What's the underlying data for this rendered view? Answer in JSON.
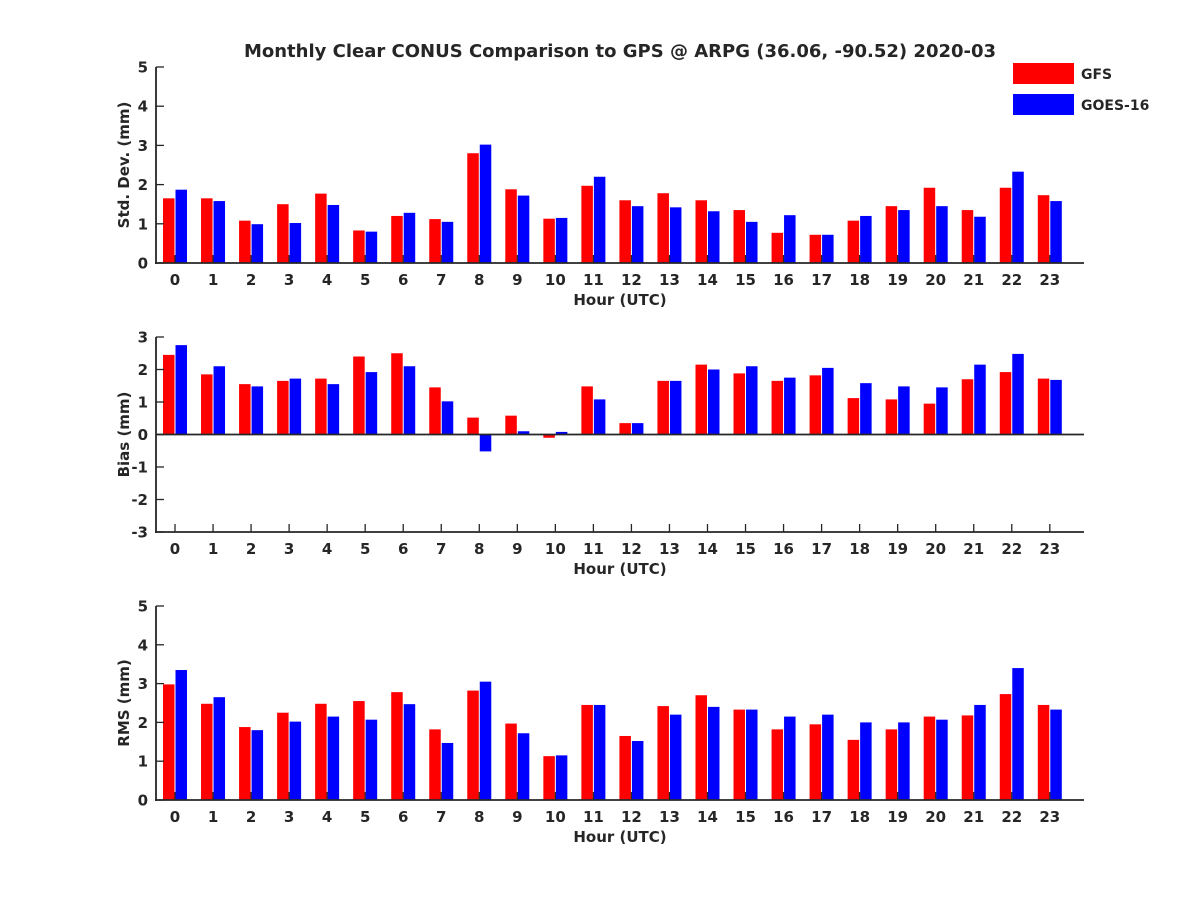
{
  "figure": {
    "title": "Monthly Clear CONUS Comparison to GPS @ ARPG (36.06, -90.52) 2020-03"
  },
  "legend": {
    "placement": "top-right",
    "entries": [
      {
        "label": "GFS",
        "color": "#ff0000"
      },
      {
        "label": "GOES-16",
        "color": "#0000ff"
      }
    ]
  },
  "chart_data": [
    {
      "type": "bar",
      "title": "Monthly Clear CONUS Comparison to GPS @ ARPG (36.06, -90.52) 2020-03",
      "xlabel": "Hour (UTC)",
      "ylabel": "Std. Dev. (mm)",
      "ylim": [
        0,
        5
      ],
      "yticks": [
        0,
        1,
        2,
        3,
        4,
        5
      ],
      "categories": [
        "0",
        "1",
        "2",
        "3",
        "4",
        "5",
        "6",
        "7",
        "8",
        "9",
        "10",
        "11",
        "12",
        "13",
        "14",
        "15",
        "16",
        "17",
        "18",
        "19",
        "20",
        "21",
        "22",
        "23"
      ],
      "grid": false,
      "series": [
        {
          "name": "GFS",
          "color": "#ff0000",
          "values": [
            1.65,
            1.65,
            1.08,
            1.5,
            1.77,
            0.83,
            1.2,
            1.12,
            2.8,
            1.88,
            1.13,
            1.97,
            1.6,
            1.78,
            1.6,
            1.35,
            0.77,
            0.72,
            1.08,
            1.45,
            1.92,
            1.35,
            1.92,
            1.73
          ]
        },
        {
          "name": "GOES-16",
          "color": "#0000ff",
          "values": [
            1.87,
            1.58,
            0.99,
            1.02,
            1.48,
            0.8,
            1.28,
            1.05,
            3.02,
            1.72,
            1.15,
            2.2,
            1.45,
            1.42,
            1.32,
            1.05,
            1.22,
            0.72,
            1.2,
            1.35,
            1.45,
            1.18,
            2.33,
            1.58
          ]
        }
      ]
    },
    {
      "type": "bar",
      "title": "",
      "xlabel": "Hour (UTC)",
      "ylabel": "Bias (mm)",
      "ylim": [
        -3,
        3
      ],
      "yticks": [
        -3,
        -2,
        -1,
        0,
        1,
        2,
        3
      ],
      "categories": [
        "0",
        "1",
        "2",
        "3",
        "4",
        "5",
        "6",
        "7",
        "8",
        "9",
        "10",
        "11",
        "12",
        "13",
        "14",
        "15",
        "16",
        "17",
        "18",
        "19",
        "20",
        "21",
        "22",
        "23"
      ],
      "grid": false,
      "series": [
        {
          "name": "GFS",
          "color": "#ff0000",
          "values": [
            2.45,
            1.85,
            1.55,
            1.65,
            1.72,
            2.4,
            2.5,
            1.45,
            0.52,
            0.58,
            -0.1,
            1.48,
            0.35,
            1.65,
            2.15,
            1.88,
            1.65,
            1.82,
            1.12,
            1.08,
            0.95,
            1.7,
            1.92,
            1.72
          ]
        },
        {
          "name": "GOES-16",
          "color": "#0000ff",
          "values": [
            2.75,
            2.1,
            1.48,
            1.72,
            1.55,
            1.92,
            2.1,
            1.02,
            -0.52,
            0.1,
            0.08,
            1.08,
            0.35,
            1.65,
            2.0,
            2.1,
            1.75,
            2.05,
            1.58,
            1.48,
            1.45,
            2.15,
            2.48,
            1.68
          ]
        }
      ]
    },
    {
      "type": "bar",
      "title": "",
      "xlabel": "Hour (UTC)",
      "ylabel": "RMS (mm)",
      "ylim": [
        0,
        5
      ],
      "yticks": [
        0,
        1,
        2,
        3,
        4,
        5
      ],
      "categories": [
        "0",
        "1",
        "2",
        "3",
        "4",
        "5",
        "6",
        "7",
        "8",
        "9",
        "10",
        "11",
        "12",
        "13",
        "14",
        "15",
        "16",
        "17",
        "18",
        "19",
        "20",
        "21",
        "22",
        "23"
      ],
      "grid": false,
      "series": [
        {
          "name": "GFS",
          "color": "#ff0000",
          "values": [
            2.98,
            2.48,
            1.88,
            2.25,
            2.48,
            2.55,
            2.78,
            1.82,
            2.82,
            1.97,
            1.13,
            2.45,
            1.65,
            2.42,
            2.7,
            2.33,
            1.82,
            1.95,
            1.55,
            1.82,
            2.15,
            2.18,
            2.73,
            2.45
          ]
        },
        {
          "name": "GOES-16",
          "color": "#0000ff",
          "values": [
            3.35,
            2.65,
            1.8,
            2.02,
            2.15,
            2.07,
            2.47,
            1.47,
            3.05,
            1.72,
            1.15,
            2.45,
            1.52,
            2.2,
            2.4,
            2.33,
            2.15,
            2.2,
            2.0,
            2.0,
            2.07,
            2.45,
            3.4,
            2.33
          ]
        }
      ]
    }
  ]
}
